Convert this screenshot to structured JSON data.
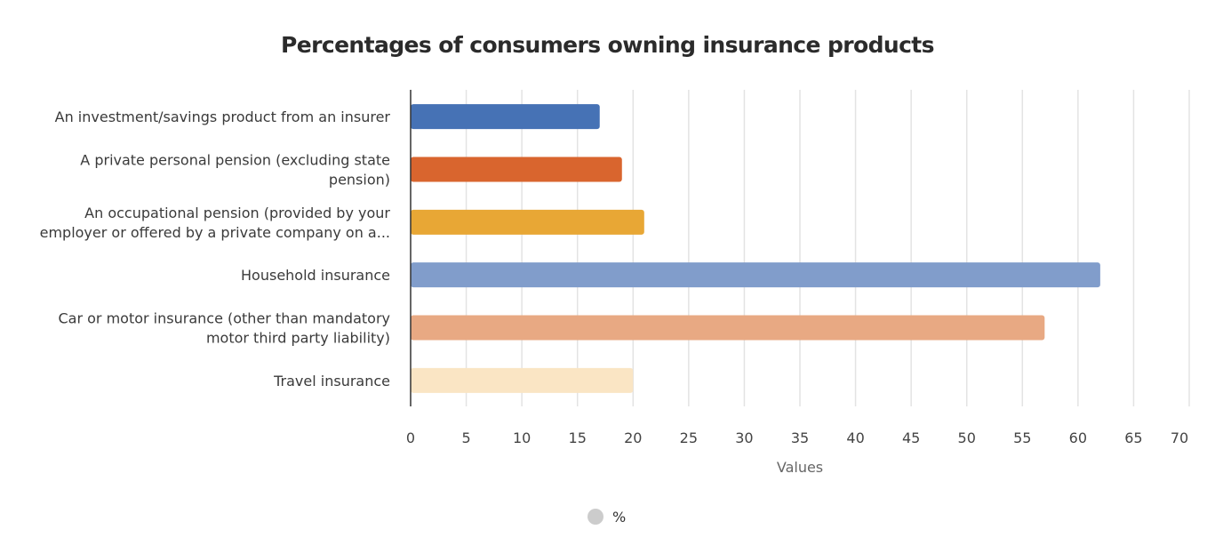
{
  "chart_data": {
    "type": "bar",
    "orientation": "horizontal",
    "title": "Percentages of consumers owning insurance products",
    "xlabel": "Values",
    "ylabel": "",
    "xlim": [
      0,
      70
    ],
    "x_ticks": [
      "0",
      "5",
      "10",
      "15",
      "20",
      "25",
      "30",
      "35",
      "40",
      "45",
      "50",
      "55",
      "60",
      "65",
      "70"
    ],
    "grid": true,
    "legend_position": "bottom",
    "categories": [
      [
        "An investment/savings product from an insurer"
      ],
      [
        "A private personal pension (excluding state",
        "pension)"
      ],
      [
        "An occupational pension (provided by your",
        "employer or offered by a private company on a..."
      ],
      [
        "Household insurance"
      ],
      [
        "Car or motor insurance (other than mandatory",
        "motor third party liability)"
      ],
      [
        "Travel insurance"
      ]
    ],
    "series": [
      {
        "name": "%",
        "legend_color": "#cccccc",
        "values": [
          17,
          19,
          21,
          62,
          57,
          20
        ],
        "colors": [
          "#4672b5",
          "#d9652e",
          "#e8a735",
          "#819dcb",
          "#e8a983",
          "#fae5c4"
        ]
      }
    ]
  }
}
